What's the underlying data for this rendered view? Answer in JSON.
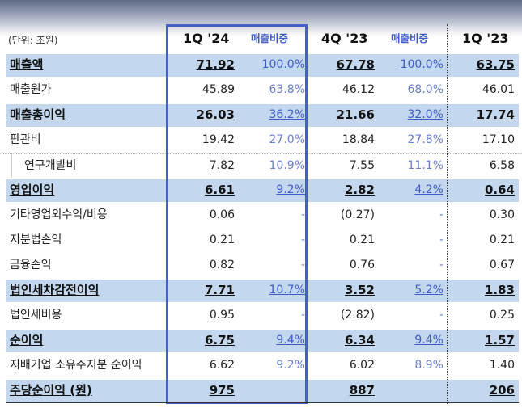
{
  "header": {
    "unit": "(단위: 조원)",
    "col1": "1Q '24",
    "ratio1": "매출비중",
    "col2": "4Q '23",
    "ratio2": "매출비중",
    "col3": "1Q '23"
  },
  "rows": [
    {
      "label": "매출액",
      "v1": "71.92",
      "p1": "100.0%",
      "v2": "67.78",
      "p2": "100.0%",
      "v3": "63.75",
      "highlight": true
    },
    {
      "label": "매출원가",
      "v1": "45.89",
      "p1": "63.8%",
      "v2": "46.12",
      "p2": "68.0%",
      "v3": "46.01"
    },
    {
      "label": "매출총이익",
      "v1": "26.03",
      "p1": "36.2%",
      "v2": "21.66",
      "p2": "32.0%",
      "v3": "17.74",
      "highlight": true
    },
    {
      "label": "판관비",
      "v1": "19.42",
      "p1": "27.0%",
      "v2": "18.84",
      "p2": "27.8%",
      "v3": "17.10"
    },
    {
      "label": "연구개발비",
      "v1": "7.82",
      "p1": "10.9%",
      "v2": "7.55",
      "p2": "11.1%",
      "v3": "6.58",
      "sub": true
    },
    {
      "label": "영업이익",
      "v1": "6.61",
      "p1": "9.2%",
      "v2": "2.82",
      "p2": "4.2%",
      "v3": "0.64",
      "highlight": true
    },
    {
      "label": "기타영업외수익/비용",
      "v1": "0.06",
      "p1": "-",
      "v2": "(0.27)",
      "p2": "-",
      "v3": "0.30"
    },
    {
      "label": "지분법손익",
      "v1": "0.21",
      "p1": "-",
      "v2": "0.21",
      "p2": "-",
      "v3": "0.21"
    },
    {
      "label": "금융손익",
      "v1": "0.82",
      "p1": "-",
      "v2": "0.76",
      "p2": "-",
      "v3": "0.67"
    },
    {
      "label": "법인세차감전이익",
      "v1": "7.71",
      "p1": "10.7%",
      "v2": "3.52",
      "p2": "5.2%",
      "v3": "1.83",
      "highlight": true
    },
    {
      "label": "법인세비용",
      "v1": "0.95",
      "p1": "-",
      "v2": "(2.82)",
      "p2": "-",
      "v3": "0.25"
    },
    {
      "label": "순이익",
      "v1": "6.75",
      "p1": "9.4%",
      "v2": "6.34",
      "p2": "9.4%",
      "v3": "1.57",
      "highlight": true
    },
    {
      "label": "지배기업 소유주지분 순이익",
      "v1": "6.62",
      "p1": "9.2%",
      "v2": "6.02",
      "p2": "8.9%",
      "v3": "1.40"
    },
    {
      "label": "주당순이익 (원)",
      "v1": "975",
      "p1": "",
      "v2": "887",
      "p2": "",
      "v3": "206",
      "highlight": true
    }
  ]
}
